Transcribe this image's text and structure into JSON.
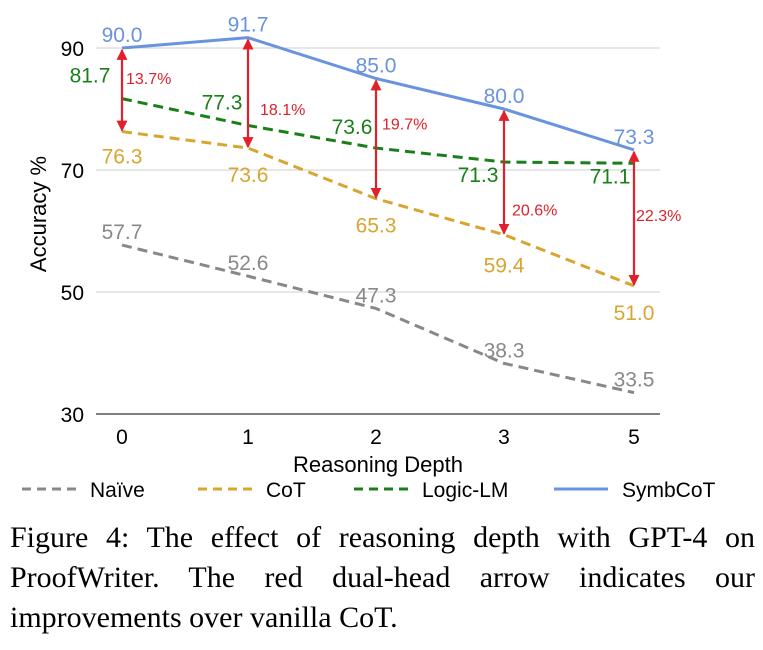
{
  "chart_data": {
    "type": "line",
    "title": "",
    "xlabel": "Reasoning Depth",
    "ylabel": "Accuracy %",
    "categories": [
      "0",
      "1",
      "2",
      "3",
      "5"
    ],
    "ylim": [
      30,
      95
    ],
    "yticks": [
      30,
      50,
      70,
      90
    ],
    "grid": true,
    "legend_position": "bottom",
    "series": [
      {
        "name": "Naïve",
        "values": [
          57.7,
          52.6,
          47.3,
          38.3,
          33.5
        ],
        "labels": [
          "57.7",
          "52.6",
          "47.3",
          "38.3",
          "33.5"
        ],
        "color": "#888888",
        "style": "dashed"
      },
      {
        "name": "CoT",
        "values": [
          76.3,
          73.6,
          65.3,
          59.4,
          51.0
        ],
        "labels": [
          "76.3",
          "73.6",
          "65.3",
          "59.4",
          "51.0"
        ],
        "color": "#d9a531",
        "style": "dashed"
      },
      {
        "name": "Logic-LM",
        "values": [
          81.7,
          77.3,
          73.6,
          71.3,
          71.1
        ],
        "labels": [
          "81.7",
          "77.3",
          "73.6",
          "71.3",
          "71.1"
        ],
        "color": "#1a7f1a",
        "style": "dashed"
      },
      {
        "name": "SymbCoT",
        "values": [
          90.0,
          91.7,
          85.0,
          80.0,
          73.3
        ],
        "labels": [
          "90.0",
          "91.7",
          "85.0",
          "80.0",
          "73.3"
        ],
        "color": "#6a93df",
        "style": "solid"
      }
    ],
    "annotations": [
      {
        "category": "0",
        "from": 76.3,
        "to": 90.0,
        "label": "13.7%"
      },
      {
        "category": "1",
        "from": 73.6,
        "to": 91.7,
        "label": "18.1%"
      },
      {
        "category": "2",
        "from": 65.3,
        "to": 85.0,
        "label": "19.7%"
      },
      {
        "category": "3",
        "from": 59.4,
        "to": 80.0,
        "label": "20.6%"
      },
      {
        "category": "5",
        "from": 51.0,
        "to": 73.3,
        "label": "22.3%"
      }
    ],
    "annotation_color": "#e0202a"
  },
  "caption": "Figure 4: The effect of reasoning depth with GPT-4 on ProofWriter. The red dual-head arrow indicates our improvements over vanilla CoT."
}
